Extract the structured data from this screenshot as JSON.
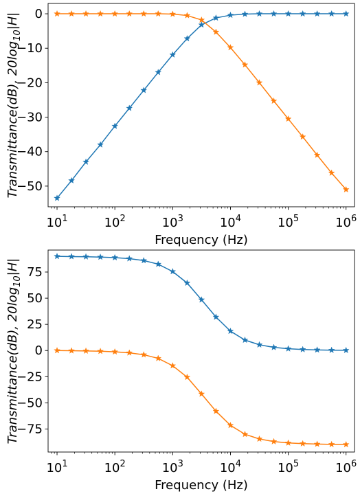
{
  "chart_data": [
    {
      "type": "line",
      "xscale": "log",
      "xlim": [
        7,
        1400000
      ],
      "ylim": [
        -56,
        3
      ],
      "xlabel": "Frequency (Hz)",
      "ylabel_main": "Transmittance(dB), 20log",
      "ylabel_sub": "10",
      "ylabel_tail": "|H|",
      "xticks": [
        {
          "value": 10,
          "base": "10",
          "exp": "1"
        },
        {
          "value": 100,
          "base": "10",
          "exp": "2"
        },
        {
          "value": 1000,
          "base": "10",
          "exp": "3"
        },
        {
          "value": 10000,
          "base": "10",
          "exp": "4"
        },
        {
          "value": 100000,
          "base": "10",
          "exp": "5"
        },
        {
          "value": 1000000,
          "base": "10",
          "exp": "6"
        }
      ],
      "yticks": [
        {
          "value": 0,
          "label": "0"
        },
        {
          "value": -10,
          "label": "−10"
        },
        {
          "value": -20,
          "label": "−20"
        },
        {
          "value": -30,
          "label": "−30"
        },
        {
          "value": -40,
          "label": "−40"
        },
        {
          "value": -50,
          "label": "−50"
        }
      ],
      "x": [
        10,
        17.8,
        31.6,
        56.2,
        100,
        178,
        316,
        562,
        1000,
        1780,
        3160,
        5620,
        10000,
        17800,
        31600,
        56200,
        100000,
        178000,
        316000,
        562000,
        1000000
      ],
      "series": [
        {
          "color": "#1f77b4",
          "values": [
            -53.5,
            -48.4,
            -43.0,
            -38.0,
            -32.6,
            -27.4,
            -22.2,
            -17.0,
            -11.9,
            -7.2,
            -3.2,
            -1.2,
            -0.4,
            -0.1,
            0,
            0,
            0,
            0,
            0,
            0,
            0
          ]
        },
        {
          "color": "#ff7f0e",
          "values": [
            0,
            0,
            0,
            0,
            0,
            0,
            0,
            0,
            -0.1,
            -0.5,
            -1.8,
            -5.3,
            -9.8,
            -14.8,
            -20.0,
            -25.3,
            -30.5,
            -35.7,
            -41.0,
            -46.2,
            -51.0
          ]
        }
      ]
    },
    {
      "type": "line",
      "xscale": "log",
      "xlim": [
        7,
        1400000
      ],
      "ylim": [
        -97,
        96
      ],
      "xlabel": "Frequency (Hz)",
      "ylabel_main": "Transmittance(dB), 20log",
      "ylabel_sub": "10",
      "ylabel_tail": "|H|",
      "xticks": [
        {
          "value": 10,
          "base": "10",
          "exp": "1"
        },
        {
          "value": 100,
          "base": "10",
          "exp": "2"
        },
        {
          "value": 1000,
          "base": "10",
          "exp": "3"
        },
        {
          "value": 10000,
          "base": "10",
          "exp": "4"
        },
        {
          "value": 100000,
          "base": "10",
          "exp": "5"
        },
        {
          "value": 1000000,
          "base": "10",
          "exp": "6"
        }
      ],
      "yticks": [
        {
          "value": 75,
          "label": "75"
        },
        {
          "value": 50,
          "label": "50"
        },
        {
          "value": 25,
          "label": "25"
        },
        {
          "value": 0,
          "label": "0"
        },
        {
          "value": -25,
          "label": "−25"
        },
        {
          "value": -50,
          "label": "−50"
        },
        {
          "value": -75,
          "label": "−75"
        }
      ],
      "x": [
        10,
        17.8,
        31.6,
        56.2,
        100,
        178,
        316,
        562,
        1000,
        1780,
        3160,
        5620,
        10000,
        17800,
        31600,
        56200,
        100000,
        178000,
        316000,
        562000,
        1000000
      ],
      "series": [
        {
          "color": "#1f77b4",
          "values": [
            90,
            89.8,
            89.6,
            89.3,
            88.8,
            87.8,
            86,
            82.5,
            75.5,
            64.5,
            48.5,
            32,
            18.5,
            10,
            5.5,
            3,
            1.7,
            1,
            0.6,
            0.3,
            0.2
          ]
        },
        {
          "color": "#ff7f0e",
          "values": [
            0,
            -0.2,
            -0.4,
            -0.7,
            -1.2,
            -2.2,
            -4.0,
            -7.5,
            -14.5,
            -25.5,
            -41.5,
            -58.0,
            -71.5,
            -80.0,
            -84.5,
            -87.0,
            -88.3,
            -89.0,
            -89.4,
            -89.7,
            -89.8
          ]
        }
      ]
    }
  ]
}
